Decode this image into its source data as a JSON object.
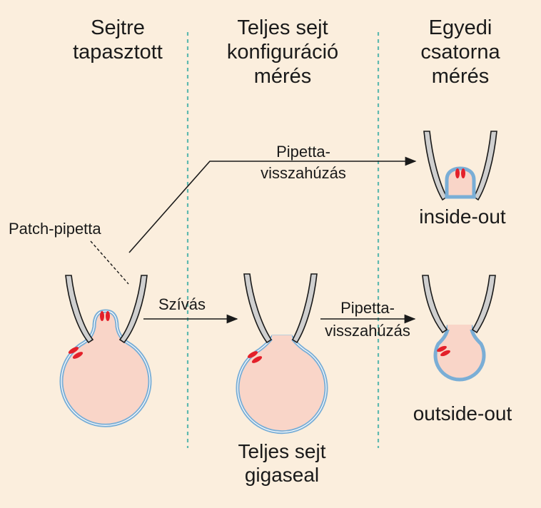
{
  "columns": {
    "col1": [
      "Sejtre",
      "tapasztott"
    ],
    "col2": [
      "Teljes sejt",
      "konfiguráció",
      "mérés"
    ],
    "col3": [
      "Egyedi",
      "csatorna",
      "mérés"
    ]
  },
  "labels": {
    "patch_pipette": "Patch-pipetta",
    "suction": "Szívás",
    "withdraw_top": [
      "Pipetta-",
      "visszahúzás"
    ],
    "withdraw_bottom": [
      "Pipetta-",
      "visszahúzás"
    ],
    "inside_out": "inside-out",
    "outside_out": "outside-out",
    "whole_cell_gigaseal": [
      "Teljes sejt",
      "gigaseal"
    ]
  },
  "colors": {
    "background": "#fbeedd",
    "divider": "#5fb9b0",
    "cell_fill": "#f9d5c8",
    "membrane": "#7aaed6",
    "pipette_fill": "#cfcfcf",
    "channel": "#e3202a"
  }
}
